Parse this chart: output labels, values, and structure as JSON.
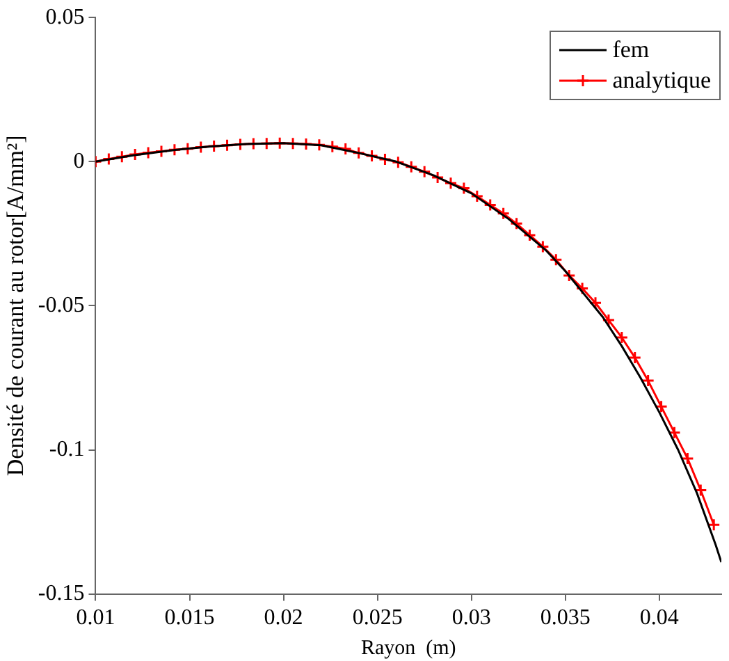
{
  "chart_data": {
    "type": "line",
    "xlabel": "Rayon  (m)",
    "ylabel": "Densité de courant au rotor[A/mm²]",
    "xlim": [
      0.01,
      0.0433
    ],
    "xticks": [
      0.01,
      0.015,
      0.02,
      0.025,
      0.03,
      0.035,
      0.04
    ],
    "ylim": [
      -0.15,
      0.05
    ],
    "yticks": [
      -0.15,
      -0.1,
      -0.05,
      0,
      0.05
    ],
    "grid": false,
    "legend": "top right",
    "series": [
      {
        "name": "fem",
        "color": "#000000",
        "marker": "none",
        "x": [
          0.01,
          0.012,
          0.014,
          0.016,
          0.018,
          0.02,
          0.022,
          0.024,
          0.026,
          0.028,
          0.03,
          0.032,
          0.034,
          0.035,
          0.036,
          0.037,
          0.038,
          0.039,
          0.04,
          0.041,
          0.042,
          0.043,
          0.0433
        ],
        "values": [
          0,
          0.0022,
          0.0039,
          0.0052,
          0.0061,
          0.0064,
          0.0057,
          0.003,
          0.0,
          -0.0048,
          -0.011,
          -0.02,
          -0.031,
          -0.038,
          -0.046,
          -0.054,
          -0.064,
          -0.075,
          -0.087,
          -0.1,
          -0.115,
          -0.133,
          -0.139
        ]
      },
      {
        "name": "analytique",
        "color": "#ff0000",
        "marker": "cross",
        "x": [
          0.01,
          0.0107,
          0.0114,
          0.0121,
          0.0128,
          0.0135,
          0.0142,
          0.0149,
          0.0156,
          0.0163,
          0.017,
          0.0177,
          0.0184,
          0.0191,
          0.0198,
          0.0205,
          0.0212,
          0.0219,
          0.0226,
          0.0233,
          0.024,
          0.0247,
          0.0254,
          0.0261,
          0.0268,
          0.0275,
          0.0282,
          0.0289,
          0.0296,
          0.0303,
          0.031,
          0.0317,
          0.0324,
          0.0331,
          0.0338,
          0.0345,
          0.0352,
          0.0359,
          0.0366,
          0.0373,
          0.038,
          0.0387,
          0.0394,
          0.0401,
          0.0408,
          0.0415,
          0.0422,
          0.0429
        ],
        "values": [
          0,
          0.0009,
          0.0017,
          0.0025,
          0.0031,
          0.0036,
          0.0041,
          0.0045,
          0.005,
          0.0054,
          0.0057,
          0.006,
          0.0062,
          0.0063,
          0.0064,
          0.0063,
          0.0061,
          0.0058,
          0.0052,
          0.0044,
          0.003,
          0.002,
          0.0008,
          -0.0002,
          -0.0018,
          -0.0035,
          -0.0055,
          -0.0075,
          -0.0092,
          -0.012,
          -0.015,
          -0.018,
          -0.0215,
          -0.0255,
          -0.0295,
          -0.034,
          -0.0395,
          -0.044,
          -0.049,
          -0.055,
          -0.061,
          -0.068,
          -0.076,
          -0.085,
          -0.094,
          -0.103,
          -0.114,
          -0.126
        ]
      }
    ]
  }
}
